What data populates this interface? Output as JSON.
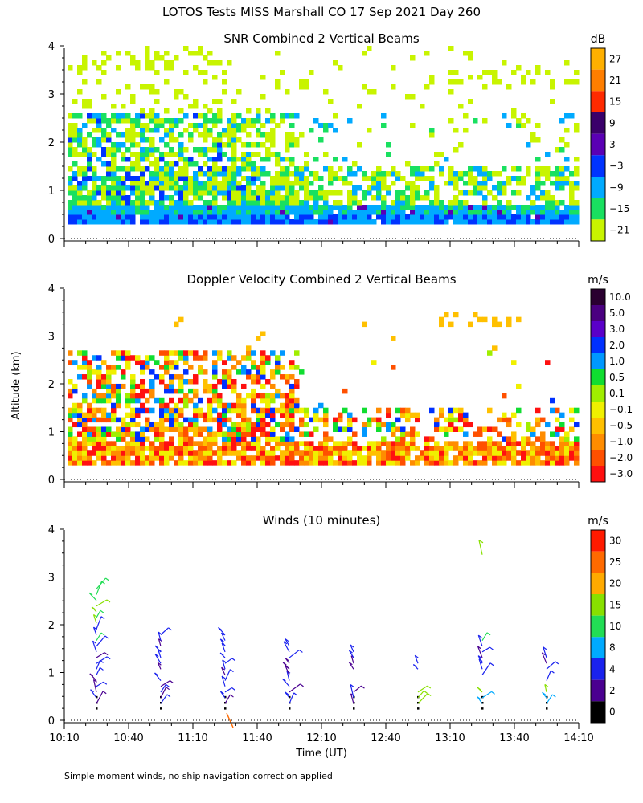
{
  "figure": {
    "title": "LOTOS Tests MISS Marshall CO  17 Sep 2021 Day 260",
    "ylabel": "Altitude (km)",
    "xlabel": "Time (UT)",
    "footnote": "Simple moment winds, no ship navigation correction applied"
  },
  "chart_data": [
    {
      "type": "heatmap",
      "title": "SNR Combined 2 Vertical Beams",
      "colorbar_unit": "dB",
      "colorbar_ticks": [
        "27",
        "21",
        "15",
        "9",
        "3",
        "−3",
        "−9",
        "−15",
        "−21"
      ],
      "colorbar_colors": [
        "#ffb000",
        "#ff7e00",
        "#ff2a00",
        "#3a006a",
        "#5a00b4",
        "#0033ff",
        "#00aaff",
        "#19e060",
        "#c8f400"
      ],
      "x_range": [
        "10:10",
        "14:10"
      ],
      "y_ticks": [
        "0",
        "1",
        "2",
        "3",
        "4"
      ],
      "ylim": [
        0,
        4
      ],
      "description_layers": [
        {
          "range_km": [
            0.3,
            0.6
          ],
          "dominant_db": [
            -9,
            -3
          ]
        },
        {
          "range_km": [
            0.6,
            1.5
          ],
          "dominant_db": [
            -21,
            -9
          ],
          "note": "denser before 12:00"
        },
        {
          "range_km": [
            1.5,
            2.7
          ],
          "dominant_db": [
            -21,
            -9
          ],
          "note": "before 11:50"
        },
        {
          "range_km": [
            2.7,
            4.0
          ],
          "dominant_db": [
            -21,
            -15
          ],
          "note": "sparse"
        }
      ]
    },
    {
      "type": "heatmap",
      "title": "Doppler Velocity Combined 2 Vertical Beams",
      "colorbar_unit": "m/s",
      "colorbar_ticks": [
        "10.0",
        "5.0",
        "3.0",
        "2.0",
        "1.0",
        "0.5",
        "0.1",
        "−0.1",
        "−0.5",
        "−1.0",
        "−2.0",
        "−3.0"
      ],
      "colorbar_colors": [
        "#2a0030",
        "#4a0080",
        "#5a00c8",
        "#0030ff",
        "#0098ff",
        "#10dd30",
        "#a0ee00",
        "#f0f000",
        "#ffc000",
        "#ff8c00",
        "#ff5000",
        "#ff1010"
      ],
      "x_range": [
        "10:10",
        "14:10"
      ],
      "y_ticks": [
        "0",
        "1",
        "2",
        "3",
        "4"
      ],
      "ylim": [
        0,
        4
      ]
    },
    {
      "type": "scatter",
      "title": "Winds (10 minutes)",
      "colorbar_unit": "m/s",
      "colorbar_ticks": [
        "30",
        "25",
        "20",
        "15",
        "10",
        "8",
        "4",
        "2",
        "0"
      ],
      "colorbar_colors": [
        "#ff1a00",
        "#ff6a00",
        "#ffaa00",
        "#88e000",
        "#22dd55",
        "#00aaff",
        "#1a22ee",
        "#4a0090",
        "#000000"
      ],
      "x_ticks": [
        "10:10",
        "10:40",
        "11:10",
        "11:40",
        "12:10",
        "12:40",
        "13:10",
        "13:40",
        "14:10"
      ],
      "y_ticks": [
        "0",
        "1",
        "2",
        "3",
        "4"
      ],
      "ylim": [
        0,
        4
      ],
      "profile_times": [
        "10:25",
        "10:55",
        "11:25",
        "11:55",
        "12:25",
        "12:55",
        "13:25",
        "13:55"
      ]
    }
  ]
}
